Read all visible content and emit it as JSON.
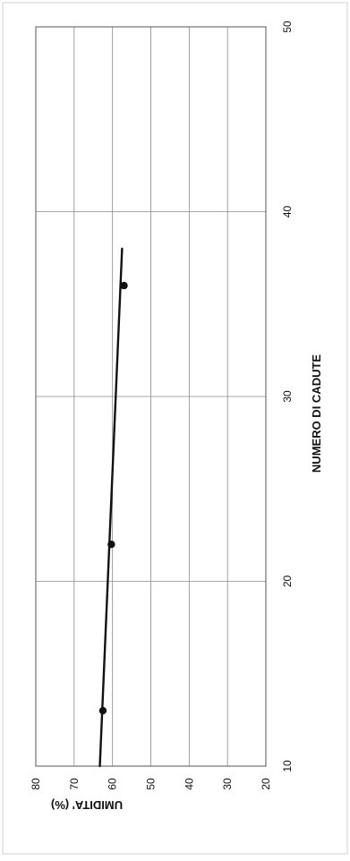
{
  "chart_data": {
    "type": "scatter",
    "title": "",
    "xlabel": "NUMERO DI CADUTE",
    "ylabel": "UMIDITA' (%)",
    "xlim": [
      10,
      50
    ],
    "ylim": [
      20,
      80
    ],
    "xticks": [
      "10",
      "20",
      "30",
      "40",
      "50"
    ],
    "yticks": [
      "80",
      "70",
      "60",
      "50",
      "40",
      "30",
      "20"
    ],
    "grid": true,
    "orientation": "rotated-90-clockwise",
    "series": [
      {
        "kind": "points",
        "x": [
          13,
          22,
          36
        ],
        "y": [
          62.5,
          60.3,
          57
        ]
      },
      {
        "kind": "trendline",
        "x": [
          10,
          38
        ],
        "y": [
          63.3,
          57.5
        ]
      }
    ],
    "colors": {
      "line": "#111111",
      "grid": "#8a8a8a",
      "frame": "#555555"
    }
  }
}
